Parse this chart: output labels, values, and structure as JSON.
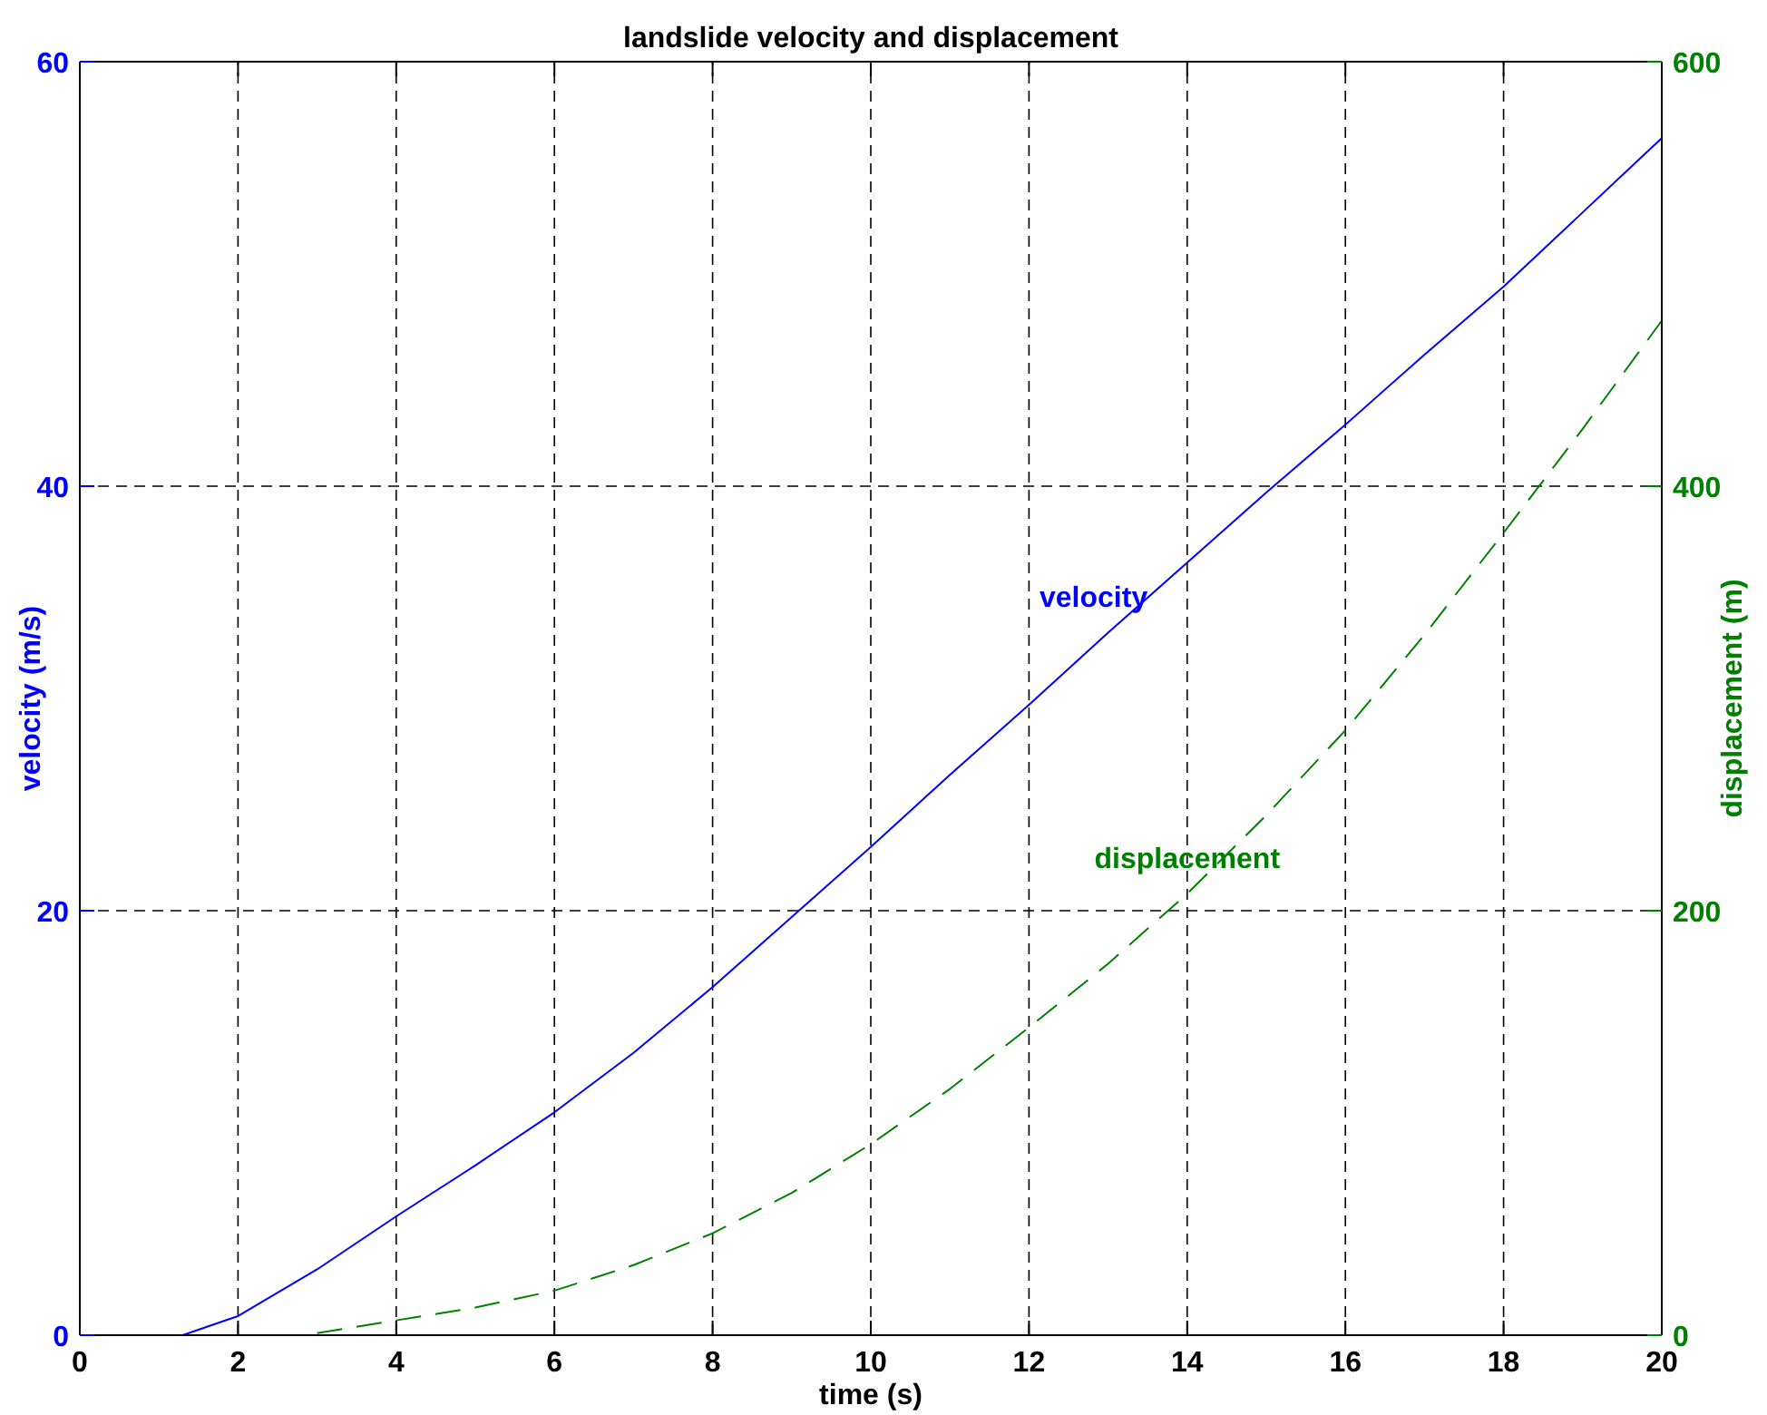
{
  "chart_data": {
    "type": "line",
    "title": "landslide velocity and displacement",
    "xlabel": "time (s)",
    "ylabel": "velocity (m/s)",
    "y2label": "displacement (m)",
    "x": [
      0,
      1,
      1.3,
      2,
      3,
      4,
      5,
      6,
      7,
      8,
      9,
      10,
      11,
      12,
      13,
      14,
      15,
      16,
      17,
      18,
      19,
      20
    ],
    "series": [
      {
        "name": "velocity",
        "color": "#0000ff",
        "line_style": "solid",
        "values": [
          0,
          0,
          0,
          0.9,
          3.1,
          5.6,
          8,
          10.5,
          13.3,
          16.4,
          19.7,
          23,
          26.4,
          29.7,
          33.1,
          36.4,
          39.7,
          42.9,
          46.2,
          49.4,
          52.9,
          56.4
        ]
      },
      {
        "name": "displacement",
        "color": "#008000",
        "line_style": "dashed",
        "axis": "y2",
        "values": [
          null,
          null,
          null,
          null,
          1,
          7,
          13,
          21,
          33,
          48,
          67,
          90,
          116,
          145,
          175,
          208,
          245,
          285,
          330,
          378,
          427,
          478
        ]
      }
    ],
    "xlim": [
      0,
      20
    ],
    "xticks": [
      0,
      2,
      4,
      6,
      8,
      10,
      12,
      14,
      16,
      18,
      20
    ],
    "ylim": [
      0,
      60
    ],
    "yticks": [
      0,
      20,
      40,
      60
    ],
    "y2lim": [
      0,
      600
    ],
    "y2ticks": [
      0,
      200,
      400,
      600
    ],
    "grid": true,
    "legend": false
  }
}
